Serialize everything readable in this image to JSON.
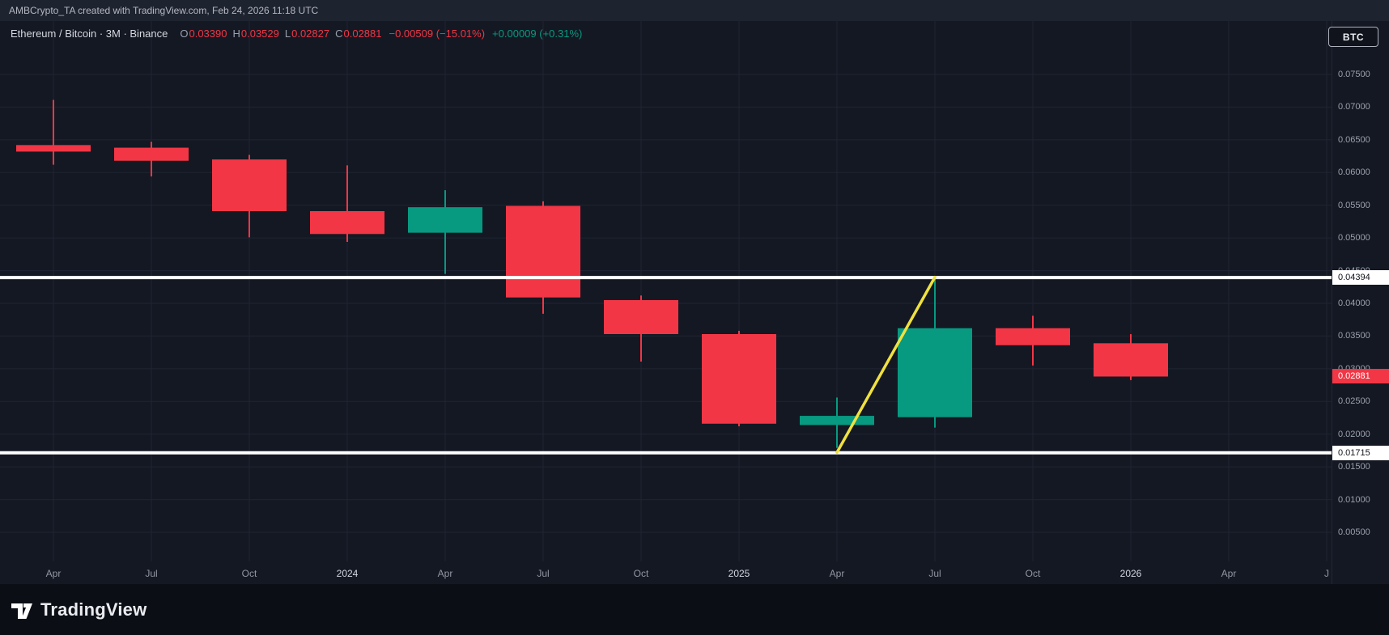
{
  "attribution": "AMBCrypto_TA created with TradingView.com, Feb 24, 2026 11:18 UTC",
  "symbol_bar": {
    "title": "Ethereum / Bitcoin · 3M · Binance",
    "ohlc": [
      {
        "label": "O",
        "value": "0.03390"
      },
      {
        "label": "H",
        "value": "0.03529"
      },
      {
        "label": "L",
        "value": "0.02827"
      },
      {
        "label": "C",
        "value": "0.02881"
      }
    ],
    "change": "−0.00509 (−15.01%)",
    "change_secondary": "+0.00009 (+0.31%)"
  },
  "currency_button": "BTC",
  "price_axis_tags": [
    {
      "text": "0.04394",
      "style": "level"
    },
    {
      "text": "0.02881",
      "style": "last"
    },
    {
      "text": "0.01715",
      "style": "level"
    }
  ],
  "footer": {
    "brand": "TradingView"
  },
  "colors": {
    "background": "#141823",
    "topbar_bg": "#1e2330",
    "footer_bg": "#0c0e15",
    "grid": "#1f2433",
    "up": "#089981",
    "down": "#f23645",
    "level_line": "#ffffff",
    "trend": "#f0e13e",
    "axis_text": "#9aa0ac",
    "last_tag_bg": "#f23645"
  },
  "chart_data": {
    "type": "candlestick",
    "title": "Ethereum / Bitcoin · 3M · Binance",
    "symbol": "Ethereum / Bitcoin",
    "interval": "3M",
    "exchange": "Binance",
    "x_axis": {
      "labels": [
        {
          "label": "Apr",
          "year": false
        },
        {
          "label": "Jul",
          "year": false
        },
        {
          "label": "Oct",
          "year": false
        },
        {
          "label": "2024",
          "year": true
        },
        {
          "label": "Apr",
          "year": false
        },
        {
          "label": "Jul",
          "year": false
        },
        {
          "label": "Oct",
          "year": false
        },
        {
          "label": "2025",
          "year": true
        },
        {
          "label": "Apr",
          "year": false
        },
        {
          "label": "Jul",
          "year": false
        },
        {
          "label": "Oct",
          "year": false
        },
        {
          "label": "2026",
          "year": true
        },
        {
          "label": "Apr",
          "year": false
        },
        {
          "label": "J",
          "year": false
        }
      ]
    },
    "y_axis": {
      "labels": [
        "0.07500",
        "0.07000",
        "0.06500",
        "0.06000",
        "0.05500",
        "0.05000",
        "0.04500",
        "0.04000",
        "0.03500",
        "0.03000",
        "0.02500",
        "0.02000",
        "0.01500",
        "0.01000",
        "0.00500"
      ],
      "visible_range": [
        0.0005,
        0.0785
      ]
    },
    "candles": [
      {
        "period": "2023-04",
        "o": 0.0642,
        "h": 0.0711,
        "l": 0.0612,
        "c": 0.0632
      },
      {
        "period": "2023-07",
        "o": 0.0638,
        "h": 0.0647,
        "l": 0.0594,
        "c": 0.0618
      },
      {
        "period": "2023-10",
        "o": 0.062,
        "h": 0.0627,
        "l": 0.0501,
        "c": 0.0541
      },
      {
        "period": "2024-01",
        "o": 0.0541,
        "h": 0.0611,
        "l": 0.0494,
        "c": 0.0506
      },
      {
        "period": "2024-04",
        "o": 0.0508,
        "h": 0.0573,
        "l": 0.0445,
        "c": 0.0547
      },
      {
        "period": "2024-07",
        "o": 0.0549,
        "h": 0.0556,
        "l": 0.0384,
        "c": 0.0409
      },
      {
        "period": "2024-10",
        "o": 0.0405,
        "h": 0.0412,
        "l": 0.0311,
        "c": 0.0353
      },
      {
        "period": "2025-01",
        "o": 0.0353,
        "h": 0.0358,
        "l": 0.0212,
        "c": 0.0216
      },
      {
        "period": "2025-04",
        "o": 0.0214,
        "h": 0.0256,
        "l": 0.0179,
        "c": 0.0228
      },
      {
        "period": "2025-07",
        "o": 0.0226,
        "h": 0.044,
        "l": 0.021,
        "c": 0.0362
      },
      {
        "period": "2025-10",
        "o": 0.0362,
        "h": 0.0381,
        "l": 0.0305,
        "c": 0.0336
      },
      {
        "period": "2026-01",
        "o": 0.0339,
        "h": 0.03529,
        "l": 0.02827,
        "c": 0.02881
      }
    ],
    "horizontal_lines": [
      {
        "price": 0.04394,
        "color": "#ffffff"
      },
      {
        "price": 0.01715,
        "color": "#ffffff"
      }
    ],
    "trend_line": {
      "from": {
        "period": "2025-04",
        "price": 0.0172
      },
      "to": {
        "period": "2025-07",
        "price": 0.044
      },
      "color": "#f0e13e"
    },
    "last_price": {
      "value": 0.02881,
      "direction": "down"
    }
  }
}
